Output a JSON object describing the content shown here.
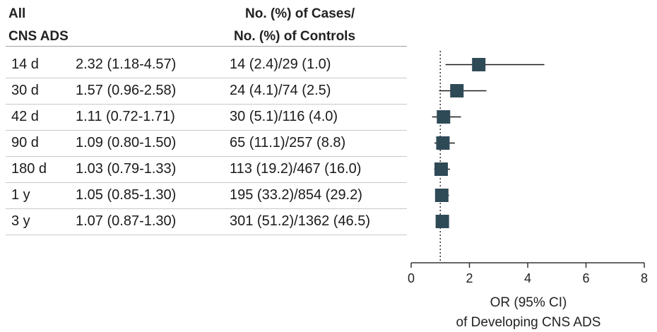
{
  "header": {
    "col1_line1": "All",
    "col1_line2": "CNS ADS",
    "col3_line1": "No. (%) of Cases/",
    "col3_line2": "No. (%) of Controls"
  },
  "rows": [
    {
      "time": "14 d",
      "or_text": "2.32 (1.18-4.57)",
      "counts": "14 (2.4)/29 (1.0)"
    },
    {
      "time": "30 d",
      "or_text": "1.57 (0.96-2.58)",
      "counts": "24 (4.1)/74 (2.5)"
    },
    {
      "time": "42 d",
      "or_text": "1.11 (0.72-1.71)",
      "counts": "30 (5.1)/116 (4.0)"
    },
    {
      "time": "90 d",
      "or_text": "1.09 (0.80-1.50)",
      "counts": "65 (11.1)/257 (8.8)"
    },
    {
      "time": "180 d",
      "or_text": "1.03 (0.79-1.33)",
      "counts": "113 (19.2)/467 (16.0)"
    },
    {
      "time": "1 y",
      "or_text": "1.05 (0.85-1.30)",
      "counts": "195 (33.2)/854 (29.2)"
    },
    {
      "time": "3 y",
      "or_text": "1.07 (0.87-1.30)",
      "counts": "301 (51.2)/1362 (46.5)"
    }
  ],
  "chart_data": {
    "type": "scatter",
    "categories": [
      "14 d",
      "30 d",
      "42 d",
      "90 d",
      "180 d",
      "1 y",
      "3 y"
    ],
    "or": [
      2.32,
      1.57,
      1.11,
      1.09,
      1.03,
      1.05,
      1.07
    ],
    "ci_low": [
      1.18,
      0.96,
      0.72,
      0.8,
      0.79,
      0.85,
      0.87
    ],
    "ci_high": [
      4.57,
      2.58,
      1.71,
      1.5,
      1.33,
      1.3,
      1.3
    ],
    "xlim": [
      0,
      8
    ],
    "xticks": [
      "0",
      "2",
      "4",
      "6",
      "8"
    ],
    "reference_line": 1,
    "xlabel_line1": "OR (95% CI)",
    "xlabel_line2": "of Developing CNS ADS",
    "marker_color": "#2f4a57",
    "line_color": "#1a1a1a"
  }
}
